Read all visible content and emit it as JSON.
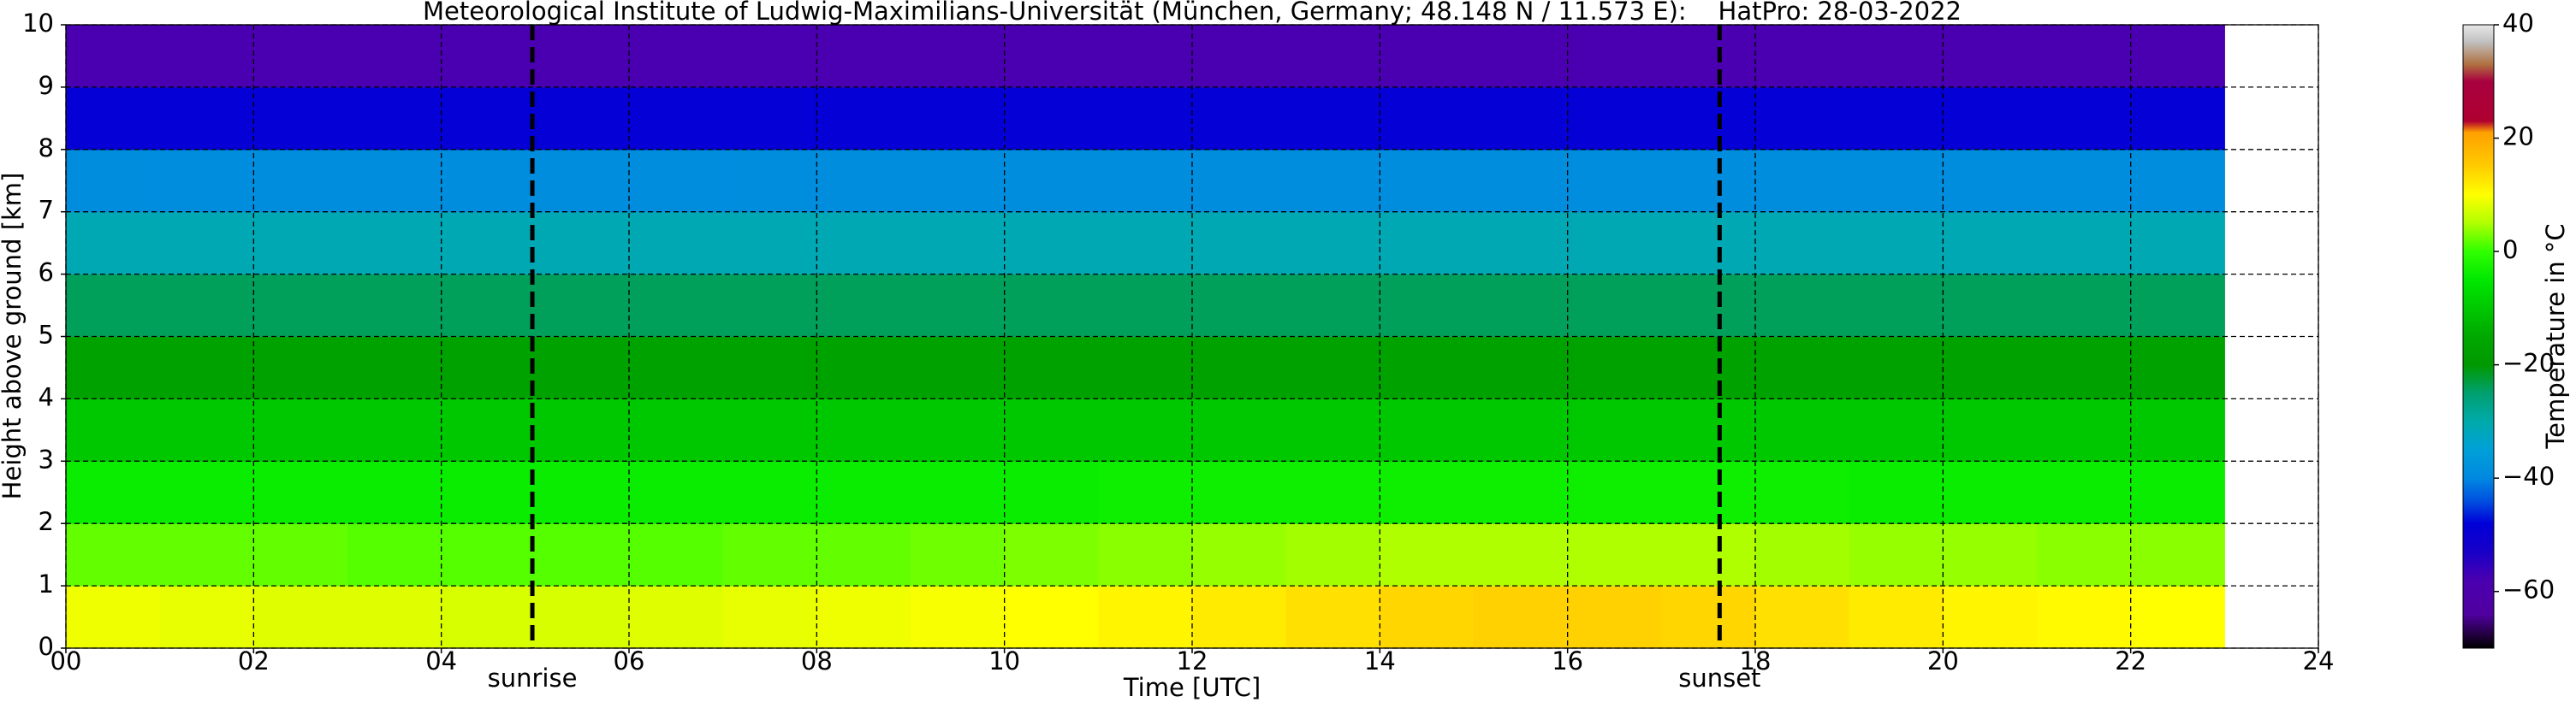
{
  "chart_data": {
    "type": "heatmap",
    "title": "Meteorological Institute of Ludwig-Maximilians-Universität (München, Germany; 48.148 N / 11.573 E):    HatPro: 28-03-2022",
    "xlabel": "Time [UTC]",
    "ylabel": "Height above ground [km]",
    "colorbar_label": "Temperature in °C",
    "x": [
      0,
      1,
      2,
      3,
      4,
      5,
      6,
      7,
      8,
      9,
      10,
      11,
      12,
      13,
      14,
      15,
      16,
      17,
      18,
      19,
      20,
      21,
      22
    ],
    "y": [
      0,
      1,
      2,
      3,
      4,
      5,
      6,
      7,
      8,
      9
    ],
    "z": [
      [
        9,
        8.5,
        8,
        8,
        7.5,
        7.5,
        8,
        8.5,
        9,
        9.5,
        10,
        11,
        12,
        13,
        14,
        14.5,
        14.5,
        14,
        13,
        12,
        11,
        10.5,
        10
      ],
      [
        2,
        2,
        2,
        1.5,
        1.5,
        1.5,
        1.5,
        2,
        2,
        2.5,
        3,
        3.5,
        4,
        4.5,
        5,
        5,
        5,
        5,
        4.5,
        4,
        4,
        3.5,
        3.5
      ],
      [
        -4,
        -4,
        -4,
        -4,
        -4,
        -4,
        -4,
        -4,
        -4,
        -4,
        -4,
        -3.5,
        -3.5,
        -3.5,
        -3.5,
        -3.5,
        -3.5,
        -3.5,
        -3.5,
        -4,
        -4,
        -4,
        -4
      ],
      [
        -10,
        -10,
        -10,
        -10,
        -10,
        -10,
        -10,
        -10,
        -10,
        -10,
        -10,
        -10,
        -10,
        -10,
        -10,
        -10,
        -10,
        -10,
        -10,
        -10,
        -10,
        -10,
        -10
      ],
      [
        -17,
        -17,
        -17,
        -17,
        -17,
        -17,
        -17,
        -17,
        -17,
        -17,
        -17,
        -17,
        -17,
        -17,
        -17,
        -17,
        -17,
        -17,
        -17,
        -17,
        -17,
        -17,
        -17
      ],
      [
        -24,
        -24,
        -24,
        -24,
        -24,
        -24,
        -24,
        -24,
        -24,
        -24,
        -24,
        -24,
        -24,
        -24,
        -24,
        -24,
        -24,
        -24,
        -24,
        -24,
        -24,
        -24,
        -24
      ],
      [
        -31,
        -31,
        -31,
        -31,
        -31,
        -31,
        -31,
        -31,
        -31,
        -31,
        -31,
        -31,
        -31,
        -31,
        -31,
        -31,
        -31,
        -31,
        -31,
        -31,
        -31,
        -31,
        -31
      ],
      [
        -39,
        -39,
        -39,
        -39,
        -39,
        -39,
        -39,
        -39,
        -39,
        -39,
        -39,
        -39,
        -39,
        -39,
        -39,
        -39,
        -39,
        -39,
        -39,
        -39,
        -39,
        -39,
        -39
      ],
      [
        -49,
        -49,
        -49,
        -49,
        -49,
        -49,
        -49,
        -49,
        -49,
        -49,
        -49,
        -49,
        -49,
        -49,
        -49,
        -49,
        -49,
        -49,
        -49,
        -49,
        -49,
        -49,
        -49
      ],
      [
        -58,
        -58,
        -58,
        -58,
        -58,
        -58,
        -58,
        -58,
        -58,
        -58,
        -58,
        -58,
        -58,
        -58,
        -58,
        -58,
        -58,
        -58,
        -58,
        -58,
        -58,
        -58,
        -58
      ]
    ],
    "xlim": [
      0,
      24
    ],
    "ylim": [
      0,
      10
    ],
    "xticks": [
      {
        "value": 0,
        "label": "00"
      },
      {
        "value": 2,
        "label": "02"
      },
      {
        "value": 4,
        "label": "04"
      },
      {
        "value": 6,
        "label": "06"
      },
      {
        "value": 8,
        "label": "08"
      },
      {
        "value": 10,
        "label": "10"
      },
      {
        "value": 12,
        "label": "12"
      },
      {
        "value": 14,
        "label": "14"
      },
      {
        "value": 16,
        "label": "16"
      },
      {
        "value": 18,
        "label": "18"
      },
      {
        "value": 20,
        "label": "20"
      },
      {
        "value": 22,
        "label": "22"
      },
      {
        "value": 24,
        "label": "24"
      }
    ],
    "yticks": [
      0,
      1,
      2,
      3,
      4,
      5,
      6,
      7,
      8,
      9,
      10
    ],
    "clim": [
      -70,
      40
    ],
    "cticks": [
      {
        "value": -60,
        "label": "−60"
      },
      {
        "value": -40,
        "label": "−40"
      },
      {
        "value": -20,
        "label": "−20"
      },
      0,
      20,
      40
    ],
    "colorscale": [
      [
        -70,
        "#000000"
      ],
      [
        -67,
        "#2a0050"
      ],
      [
        -64,
        "#5000a0"
      ],
      [
        -58,
        "#4a00b0"
      ],
      [
        -53,
        "#1800c8"
      ],
      [
        -48,
        "#0000d8"
      ],
      [
        -44,
        "#0050e0"
      ],
      [
        -40,
        "#0088e0"
      ],
      [
        -35,
        "#00a0d8"
      ],
      [
        -30,
        "#00aaaa"
      ],
      [
        -25,
        "#00a070"
      ],
      [
        -20,
        "#009900"
      ],
      [
        -15,
        "#00a800"
      ],
      [
        -10,
        "#00c800"
      ],
      [
        -5,
        "#00e800"
      ],
      [
        0,
        "#30ff00"
      ],
      [
        5,
        "#b0ff00"
      ],
      [
        10,
        "#ffff00"
      ],
      [
        15,
        "#ffcc00"
      ],
      [
        21,
        "#ffa000"
      ],
      [
        23,
        "#b00030"
      ],
      [
        30,
        "#a80040"
      ],
      [
        33,
        "#b07040"
      ],
      [
        37,
        "#c0c0c0"
      ],
      [
        40,
        "#e8e8e8"
      ]
    ],
    "grid": true,
    "events": [
      {
        "label": "sunrise",
        "x": 4.97
      },
      {
        "label": "sunset",
        "x": 17.62
      }
    ]
  }
}
